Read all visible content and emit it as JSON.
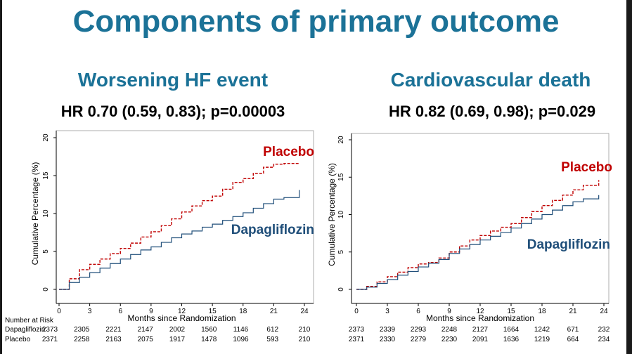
{
  "title": "Components of primary outcome",
  "colors": {
    "title": "#1b7297",
    "placebo": "#c00000",
    "dapagliflozin": "#1f4e79"
  },
  "risk_table": {
    "header": "Number at Risk",
    "rows": [
      "Dapagliflozin",
      "Placebo"
    ]
  },
  "chart_data": [
    {
      "type": "line",
      "title": "Worsening HF event",
      "subtitle": "HR 0.70 (0.59, 0.83); p=0.00003",
      "xlabel": "Months since Randomization",
      "ylabel": "Cumulative Percentage (%)",
      "xlim": [
        0,
        24
      ],
      "ylim": [
        0,
        20
      ],
      "xticks": [
        0,
        3,
        6,
        9,
        12,
        15,
        18,
        21,
        24
      ],
      "yticks": [
        0,
        5,
        10,
        15,
        20
      ],
      "series": [
        {
          "name": "Placebo",
          "color": "#c00000",
          "dashed": true,
          "x": [
            0,
            1,
            2,
            3,
            4,
            5,
            6,
            7,
            8,
            9,
            10,
            11,
            12,
            13,
            14,
            15,
            16,
            17,
            18,
            19,
            20,
            21,
            22,
            23.5
          ],
          "y": [
            0,
            1.4,
            2.6,
            3.3,
            4.0,
            4.7,
            5.4,
            6.1,
            6.9,
            7.6,
            8.4,
            9.3,
            10.2,
            11.0,
            11.7,
            12.3,
            13.2,
            14.1,
            14.6,
            15.3,
            16.1,
            16.5,
            16.6,
            16.6
          ]
        },
        {
          "name": "Dapagliflozin",
          "color": "#1f4e79",
          "dashed": false,
          "x": [
            0,
            1,
            2,
            3,
            4,
            5,
            6,
            7,
            8,
            9,
            10,
            11,
            12,
            13,
            14,
            15,
            16,
            17,
            18,
            19,
            20,
            21,
            22,
            23.5
          ],
          "y": [
            0,
            0.9,
            1.6,
            2.2,
            2.8,
            3.4,
            4.0,
            4.6,
            5.2,
            5.6,
            6.2,
            6.8,
            7.3,
            7.7,
            8.2,
            8.6,
            9.1,
            9.6,
            10.1,
            10.7,
            11.3,
            11.9,
            12.1,
            13.1
          ]
        }
      ],
      "risk": {
        "x": [
          0,
          3,
          6,
          9,
          12,
          15,
          18,
          21,
          24
        ],
        "dapagliflozin": [
          2373,
          2305,
          2221,
          2147,
          2002,
          1560,
          1146,
          612,
          210
        ],
        "placebo": [
          2371,
          2258,
          2163,
          2075,
          1917,
          1478,
          1096,
          593,
          210
        ]
      }
    },
    {
      "type": "line",
      "title": "Cardiovascular death",
      "subtitle": "HR 0.82 (0.69, 0.98); p=0.029",
      "xlabel": "Months since Randomization",
      "ylabel": "Cumulative Percentage (%)",
      "xlim": [
        0,
        24
      ],
      "ylim": [
        0,
        20
      ],
      "xticks": [
        0,
        3,
        6,
        9,
        12,
        15,
        18,
        21,
        24
      ],
      "yticks": [
        0,
        5,
        10,
        15,
        20
      ],
      "series": [
        {
          "name": "Placebo",
          "color": "#c00000",
          "dashed": true,
          "x": [
            0,
            1,
            2,
            3,
            4,
            5,
            6,
            7,
            8,
            9,
            10,
            11,
            12,
            13,
            14,
            15,
            16,
            17,
            18,
            19,
            20,
            21,
            22,
            23.5
          ],
          "y": [
            0,
            0.4,
            1.0,
            1.7,
            2.3,
            2.9,
            3.4,
            3.6,
            4.2,
            5.0,
            5.8,
            6.6,
            7.2,
            7.8,
            8.3,
            8.8,
            9.6,
            10.4,
            11.2,
            11.9,
            12.6,
            13.3,
            13.9,
            14.6
          ]
        },
        {
          "name": "Dapagliflozin",
          "color": "#1f4e79",
          "dashed": false,
          "x": [
            0,
            1,
            2,
            3,
            4,
            5,
            6,
            7,
            8,
            9,
            10,
            11,
            12,
            13,
            14,
            15,
            16,
            17,
            18,
            19,
            20,
            21,
            22,
            23.5
          ],
          "y": [
            0,
            0.3,
            0.8,
            1.3,
            1.9,
            2.4,
            3.0,
            3.5,
            4.0,
            4.8,
            5.4,
            6.0,
            6.6,
            7.1,
            7.6,
            8.2,
            8.8,
            9.4,
            10.0,
            10.6,
            11.2,
            11.7,
            12.1,
            12.6
          ]
        }
      ],
      "risk": {
        "x": [
          0,
          3,
          6,
          9,
          12,
          15,
          18,
          21,
          24
        ],
        "dapagliflozin": [
          2373,
          2339,
          2293,
          2248,
          2127,
          1664,
          1242,
          671,
          232
        ],
        "placebo": [
          2371,
          2330,
          2279,
          2230,
          2091,
          1636,
          1219,
          664,
          234
        ]
      }
    }
  ]
}
